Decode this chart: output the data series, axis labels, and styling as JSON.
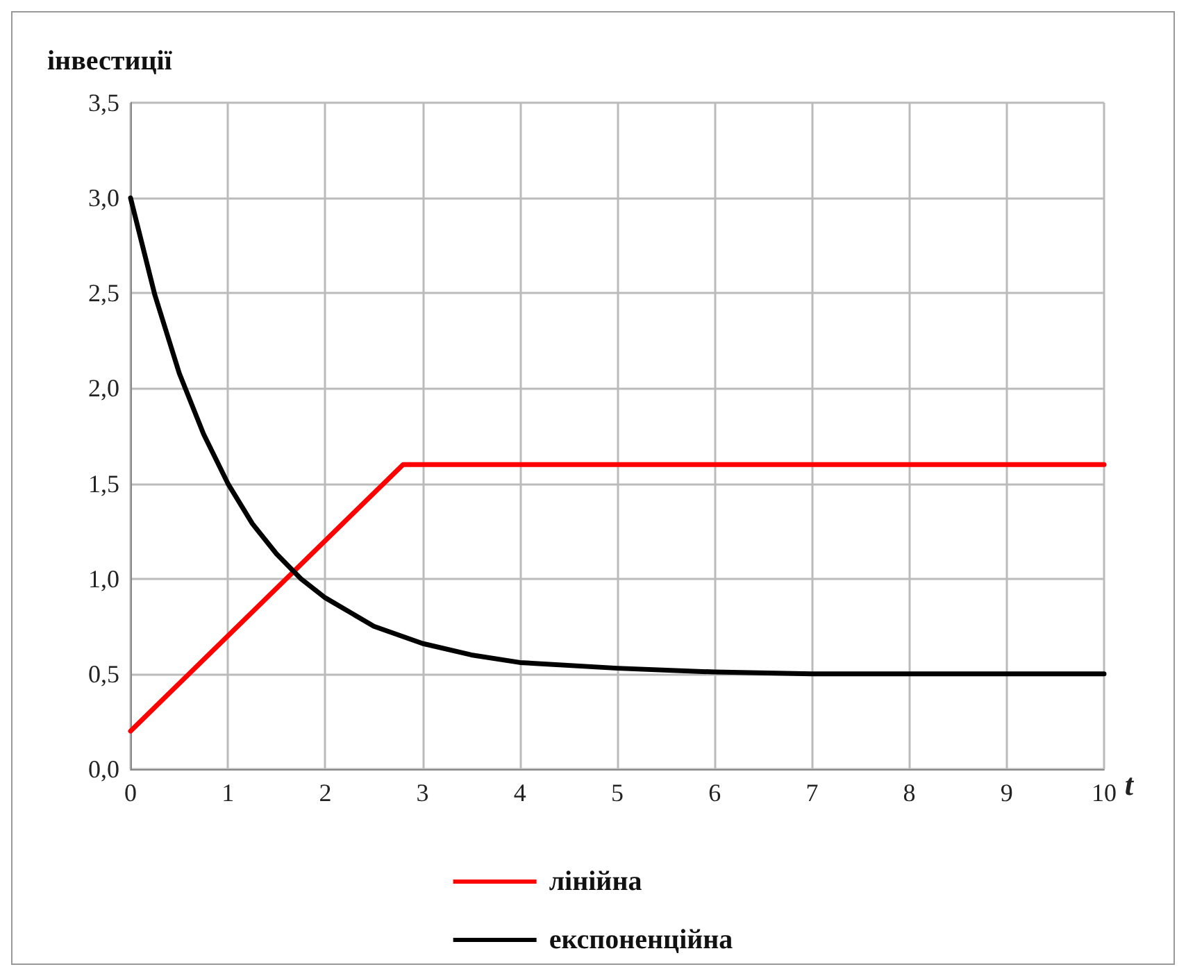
{
  "chart_data": {
    "type": "line",
    "ylabel": "інвестиції",
    "xlabel": "t",
    "xlim": [
      0,
      10
    ],
    "xticks": [
      0,
      1,
      2,
      3,
      4,
      5,
      6,
      7,
      8,
      9,
      10
    ],
    "ylim": [
      0,
      3.5
    ],
    "yticks": [
      {
        "value": 0,
        "label": "0,0"
      },
      {
        "value": 0.5,
        "label": "0,5"
      },
      {
        "value": 1,
        "label": "1,0"
      },
      {
        "value": 1.5,
        "label": "1,5"
      },
      {
        "value": 2,
        "label": "2,0"
      },
      {
        "value": 2.5,
        "label": "2,5"
      },
      {
        "value": 3,
        "label": "3,0"
      },
      {
        "value": 3.5,
        "label": "3,5"
      }
    ],
    "grid": true,
    "legend": "bottom",
    "marker": "none",
    "line_style": "solid",
    "series": [
      {
        "name": "лінійна",
        "color": "#ff0000",
        "x": [
          0,
          2.8,
          10
        ],
        "values": [
          0.2,
          1.6,
          1.6
        ]
      },
      {
        "name": "експоненційна",
        "color": "#000000",
        "x": [
          0,
          0.25,
          0.5,
          0.75,
          1,
          1.25,
          1.5,
          1.75,
          2,
          2.5,
          3,
          3.5,
          4,
          5,
          6,
          7,
          8,
          9,
          10
        ],
        "values": [
          3,
          2.49,
          2.08,
          1.76,
          1.5,
          1.29,
          1.13,
          1.0,
          0.9,
          0.75,
          0.66,
          0.6,
          0.56,
          0.53,
          0.51,
          0.5,
          0.5,
          0.5,
          0.5
        ]
      }
    ]
  }
}
